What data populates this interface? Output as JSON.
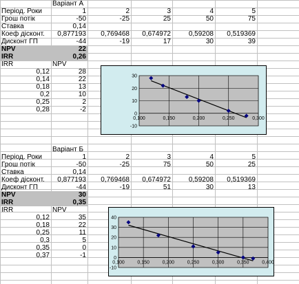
{
  "tableA": {
    "variant": "Варіант А",
    "rows": [
      {
        "label": "Період. Роки",
        "vals": [
          "1",
          "2",
          "3",
          "4",
          "5"
        ]
      },
      {
        "label": "Грош потік",
        "vals": [
          "-50",
          "-25",
          "25",
          "50",
          "75"
        ]
      },
      {
        "label": "Ставка",
        "vals": [
          "0,14",
          "",
          "",
          "",
          ""
        ]
      },
      {
        "label": "Коеф дісконт.",
        "vals": [
          "0,877193",
          "0,769468",
          "0,674972",
          "0,59208",
          "0,519369"
        ]
      },
      {
        "label": "Дисконт ГП",
        "vals": [
          "-44",
          "-19",
          "17",
          "30",
          "39"
        ]
      }
    ],
    "npv_label": "NPV",
    "npv_value": "22",
    "irr_label": "IRR",
    "irr_value": "0,26",
    "list_head": [
      "IRR",
      "NPV"
    ],
    "list": [
      [
        "0,12",
        "28"
      ],
      [
        "0,14",
        "22"
      ],
      [
        "0,18",
        "13"
      ],
      [
        "0,2",
        "10"
      ],
      [
        "0,25",
        "2"
      ],
      [
        "0,28",
        "-2"
      ]
    ]
  },
  "tableB": {
    "variant": "Варіант Б",
    "rows": [
      {
        "label": "Період. Роки",
        "vals": [
          "1",
          "2",
          "3",
          "4",
          "5"
        ]
      },
      {
        "label": "Грош потік",
        "vals": [
          "-50",
          "-25",
          "75",
          "50",
          "25"
        ]
      },
      {
        "label": "Ставка",
        "vals": [
          "0,14",
          "",
          "",
          "",
          ""
        ]
      },
      {
        "label": "Коеф дісконт.",
        "vals": [
          "0,877193",
          "0,769468",
          "0,674972",
          "0,59208",
          "0,519369"
        ]
      },
      {
        "label": "Дисконт ГП",
        "vals": [
          "-44",
          "-19",
          "51",
          "30",
          "13"
        ]
      }
    ],
    "npv_label": "NPV",
    "npv_value": "30",
    "irr_label": "IRR",
    "irr_value": "0,35",
    "list_head": [
      "IRR",
      "NPV"
    ],
    "list": [
      [
        "0,12",
        "35"
      ],
      [
        "0,18",
        "22"
      ],
      [
        "0,25",
        "11"
      ],
      [
        "0,3",
        "5"
      ],
      [
        "0,35",
        "0"
      ],
      [
        "0,37",
        "-1"
      ]
    ]
  },
  "chart_data": [
    {
      "type": "scatter",
      "x": [
        0.12,
        0.14,
        0.18,
        0.2,
        0.25,
        0.28
      ],
      "y": [
        28,
        22,
        13,
        10,
        2,
        -2
      ],
      "trendline": true,
      "xlim": [
        0.1,
        0.3
      ],
      "ylim": [
        -10,
        30
      ],
      "xticks": [
        "0,100",
        "0,150",
        "0,200",
        "0,250",
        "0,300"
      ],
      "yticks": [
        "-10",
        "0",
        "10",
        "20",
        "30"
      ],
      "grid": true,
      "marker_color": "#000080",
      "plot_bg": "#c0c0c0"
    },
    {
      "type": "scatter",
      "x": [
        0.12,
        0.18,
        0.25,
        0.3,
        0.35,
        0.37
      ],
      "y": [
        35,
        22,
        11,
        5,
        0,
        -1
      ],
      "trendline": true,
      "xlim": [
        0.1,
        0.4
      ],
      "ylim": [
        -10,
        40
      ],
      "xticks": [
        "0,100",
        "0,150",
        "0,200",
        "0,250",
        "0,300",
        "0,350",
        "0,400"
      ],
      "yticks": [
        "-10",
        "0",
        "10",
        "20",
        "30",
        "40"
      ],
      "grid": true,
      "marker_color": "#000080",
      "plot_bg": "#c0c0c0"
    }
  ]
}
